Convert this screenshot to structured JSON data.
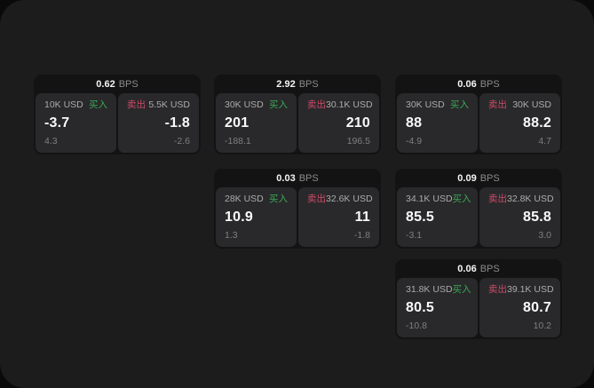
{
  "labels": {
    "bps_unit": "BPS",
    "buy": "买入",
    "sell": "卖出"
  },
  "colors": {
    "buy_accent": "#3aa855",
    "sell_accent": "#ce4a68",
    "window_bg": "#1c1c1d",
    "card_bg": "#131314",
    "pane_bg": "#29292b"
  },
  "cards": [
    {
      "bps": "0.62",
      "buy": {
        "notional": "10K USD",
        "price": "-3.7",
        "delta": "4.3"
      },
      "sell": {
        "notional": "5.5K USD",
        "price": "-1.8",
        "delta": "-2.6"
      }
    },
    {
      "bps": "2.92",
      "buy": {
        "notional": "30K USD",
        "price": "201",
        "delta": "-188.1"
      },
      "sell": {
        "notional": "30.1K USD",
        "price": "210",
        "delta": "196.5"
      }
    },
    {
      "bps": "0.06",
      "buy": {
        "notional": "30K USD",
        "price": "88",
        "delta": "-4.9"
      },
      "sell": {
        "notional": "30K USD",
        "price": "88.2",
        "delta": "4.7"
      }
    },
    {
      "bps": "0.03",
      "buy": {
        "notional": "28K USD",
        "price": "10.9",
        "delta": "1.3"
      },
      "sell": {
        "notional": "32.6K USD",
        "price": "11",
        "delta": "-1.8"
      }
    },
    {
      "bps": "0.09",
      "buy": {
        "notional": "34.1K USD",
        "price": "85.5",
        "delta": "-3.1"
      },
      "sell": {
        "notional": "32.8K USD",
        "price": "85.8",
        "delta": "3.0"
      }
    },
    {
      "bps": "0.06",
      "buy": {
        "notional": "31.8K USD",
        "price": "80.5",
        "delta": "-10.8"
      },
      "sell": {
        "notional": "39.1K USD",
        "price": "80.7",
        "delta": "10.2"
      }
    }
  ]
}
